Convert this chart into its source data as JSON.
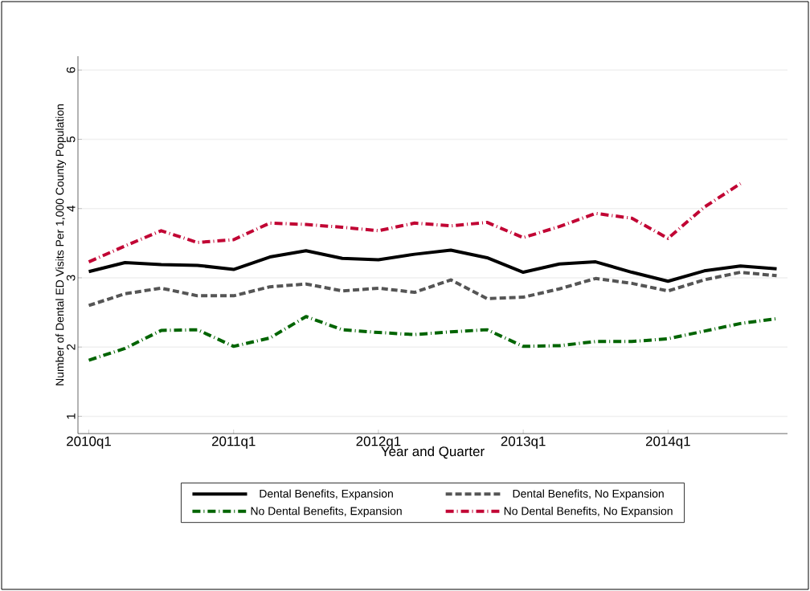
{
  "chart_data": {
    "type": "line",
    "xlabel": "Year and Quarter",
    "ylabel": "Number of Dental ED Visits Per 1,000 County Population",
    "categories": [
      "2010q1",
      null,
      null,
      null,
      "2011q1",
      null,
      null,
      null,
      "2012q1",
      null,
      null,
      null,
      "2013q1",
      null,
      null,
      null,
      "2014q1",
      null,
      null,
      null
    ],
    "ylim": [
      0.75,
      6.2
    ],
    "yticks": [
      1,
      2,
      3,
      4,
      5,
      6
    ],
    "grid": "y",
    "legend": "bottom",
    "series": [
      {
        "name": "Dental Benefits, Expansion",
        "color": "#000000",
        "line_style": "solid",
        "values": [
          3.09,
          3.22,
          3.19,
          3.18,
          3.12,
          3.3,
          3.39,
          3.28,
          3.26,
          3.34,
          3.4,
          3.29,
          3.08,
          3.2,
          3.23,
          3.08,
          2.95,
          3.1,
          3.17,
          3.13
        ]
      },
      {
        "name": "Dental Benefits, No Expansion",
        "color": "#555555",
        "line_style": "dashed",
        "values": [
          2.6,
          2.77,
          2.85,
          2.74,
          2.74,
          2.87,
          2.91,
          2.81,
          2.85,
          2.79,
          2.97,
          2.7,
          2.72,
          2.84,
          2.99,
          2.92,
          2.81,
          2.97,
          3.08,
          3.03
        ]
      },
      {
        "name": "No Dental Benefits, Expansion",
        "color": "#006400",
        "line_style": "dashdot",
        "values": [
          1.81,
          1.98,
          2.24,
          2.25,
          2.01,
          2.13,
          2.44,
          2.25,
          2.21,
          2.18,
          2.22,
          2.25,
          2.01,
          2.02,
          2.08,
          2.08,
          2.12,
          2.23,
          2.34,
          2.41
        ]
      },
      {
        "name": "No Dental Benefits, No Expansion",
        "color": "#c10534",
        "line_style": "dashdot",
        "values": [
          3.23,
          3.46,
          3.68,
          3.51,
          3.55,
          3.79,
          3.77,
          3.73,
          3.68,
          3.79,
          3.75,
          3.8,
          3.58,
          3.74,
          3.93,
          3.86,
          3.57,
          4.02,
          4.36,
          null
        ]
      }
    ]
  }
}
